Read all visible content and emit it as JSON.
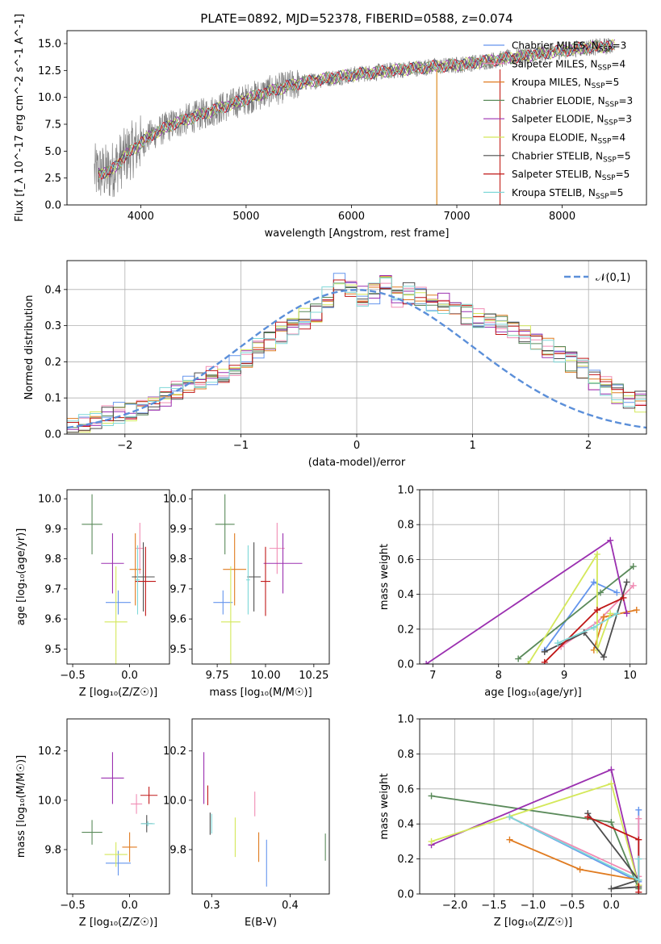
{
  "chart_data": [
    {
      "type": "line",
      "title": "PLATE=0892, MJD=52378, FIBERID=0588, z=0.074",
      "xlabel": "wavelength [Angstrom, rest frame]",
      "ylabel": "Flux [f_λ 10^-17 erg cm^-2 s^-1 A^-1]",
      "xlim": [
        3300,
        8800
      ],
      "ylim": [
        0,
        16.2
      ],
      "xticks": [
        4000,
        5000,
        6000,
        7000,
        8000
      ],
      "yticks": [
        0.0,
        2.5,
        5.0,
        7.5,
        10.0,
        12.5,
        15.0
      ],
      "grid": false,
      "legend": "right",
      "continuum_x": [
        3550,
        3700,
        3900,
        4100,
        4300,
        4600,
        4900,
        5200,
        5500,
        5800,
        6100,
        6400,
        6700,
        7000,
        7300,
        7600,
        7900,
        8200,
        8500
      ],
      "continuum_y": [
        3.0,
        3.0,
        5.0,
        6.5,
        7.5,
        8.5,
        9.5,
        10.5,
        11.3,
        11.8,
        12.2,
        12.5,
        12.8,
        13.0,
        13.4,
        13.8,
        14.2,
        14.6,
        14.8
      ],
      "legend_entries": [
        {
          "label": "Chabrier MILES, N",
          "sub": "SSP",
          "tail": "=3",
          "color": "#6495ED"
        },
        {
          "label": "Salpeter MILES, N",
          "sub": "SSP",
          "tail": "=4",
          "color": "#F08CB4"
        },
        {
          "label": "Kroupa MILES, N",
          "sub": "SSP",
          "tail": "=5",
          "color": "#E07B20"
        },
        {
          "label": "Chabrier ELODIE, N",
          "sub": "SSP",
          "tail": "=3",
          "color": "#5A8A5A"
        },
        {
          "label": "Salpeter ELODIE, N",
          "sub": "SSP",
          "tail": "=3",
          "color": "#9B30B0"
        },
        {
          "label": "Kroupa ELODIE, N",
          "sub": "SSP",
          "tail": "=4",
          "color": "#D4E85A"
        },
        {
          "label": "Chabrier STELIB, N",
          "sub": "SSP",
          "tail": "=5",
          "color": "#4D4D4D"
        },
        {
          "label": "Salpeter STELIB, N",
          "sub": "SSP",
          "tail": "=5",
          "color": "#C01818"
        },
        {
          "label": "Kroupa STELIB, N",
          "sub": "SSP",
          "tail": "=5",
          "color": "#7FD8D8"
        }
      ]
    },
    {
      "type": "histogram",
      "xlabel": "(data-model)/error",
      "ylabel": "Normed distribution",
      "xlim": [
        -2.5,
        2.5
      ],
      "ylim": [
        0,
        0.48
      ],
      "xticks": [
        -2,
        -1,
        0,
        1,
        2
      ],
      "yticks": [
        0.0,
        0.1,
        0.2,
        0.3,
        0.4
      ],
      "grid": true,
      "legend": "top-right",
      "gaussian_label": "𝒩(0,1)",
      "gaussian_color": "#5B8FD9",
      "bin_width": 0.1,
      "bin_start": -2.5,
      "base_values": [
        0.02,
        0.025,
        0.04,
        0.05,
        0.06,
        0.065,
        0.08,
        0.09,
        0.1,
        0.12,
        0.14,
        0.15,
        0.16,
        0.17,
        0.19,
        0.21,
        0.24,
        0.26,
        0.28,
        0.3,
        0.32,
        0.34,
        0.38,
        0.42,
        0.4,
        0.38,
        0.39,
        0.41,
        0.38,
        0.39,
        0.38,
        0.37,
        0.36,
        0.34,
        0.33,
        0.32,
        0.31,
        0.3,
        0.29,
        0.28,
        0.25,
        0.24,
        0.22,
        0.2,
        0.18,
        0.15,
        0.13,
        0.11,
        0.1,
        0.09,
        0.08,
        0.07,
        0.06,
        0.05,
        0.04,
        0.035,
        0.03,
        0.025,
        0.02,
        0.02
      ]
    },
    {
      "type": "scatter",
      "xlabel": "Z [log₁₀(Z/Z☉)]",
      "ylabel": "age [log₁₀(age/yr)]",
      "xlim": [
        -0.55,
        0.35
      ],
      "ylim": [
        9.45,
        10.03
      ],
      "xticks": [
        -0.5,
        0.0
      ],
      "yticks": [
        9.5,
        9.6,
        9.7,
        9.8,
        9.9,
        10.0
      ],
      "points": [
        {
          "x": -0.1,
          "y": 9.655,
          "ex": 0.22,
          "ey": 0.08,
          "color": "#6495ED"
        },
        {
          "x": 0.09,
          "y": 9.835,
          "ex": 0.07,
          "ey": 0.17,
          "color": "#F08CB4"
        },
        {
          "x": 0.05,
          "y": 9.765,
          "ex": 0.1,
          "ey": 0.24,
          "color": "#E07B20"
        },
        {
          "x": -0.33,
          "y": 9.915,
          "ex": 0.18,
          "ey": 0.2,
          "color": "#5A8A5A"
        },
        {
          "x": -0.15,
          "y": 9.785,
          "ex": 0.2,
          "ey": 0.2,
          "color": "#9B30B0"
        },
        {
          "x": -0.12,
          "y": 9.59,
          "ex": 0.2,
          "ey": 0.37,
          "color": "#D4E85A"
        },
        {
          "x": 0.12,
          "y": 9.74,
          "ex": 0.2,
          "ey": 0.23,
          "color": "#4D4D4D"
        },
        {
          "x": 0.14,
          "y": 9.725,
          "ex": 0.18,
          "ey": 0.23,
          "color": "#C01818"
        },
        {
          "x": 0.07,
          "y": 9.73,
          "ex": 0.04,
          "ey": 0.23,
          "color": "#7FD8D8"
        }
      ]
    },
    {
      "type": "scatter",
      "xlabel": "mass [log₁₀(M/M☉)]",
      "ylabel": "",
      "xlim": [
        9.62,
        10.33
      ],
      "ylim": [
        9.45,
        10.03
      ],
      "xticks": [
        9.75,
        10.0,
        10.25
      ],
      "yticks": [
        9.5,
        9.6,
        9.7,
        9.8,
        9.9,
        10.0
      ],
      "points": [
        {
          "x": 9.78,
          "y": 9.655,
          "ex": 0.1,
          "ey": 0.08,
          "color": "#6495ED"
        },
        {
          "x": 10.06,
          "y": 9.835,
          "ex": 0.08,
          "ey": 0.17,
          "color": "#F08CB4"
        },
        {
          "x": 9.84,
          "y": 9.765,
          "ex": 0.12,
          "ey": 0.24,
          "color": "#E07B20"
        },
        {
          "x": 9.79,
          "y": 9.915,
          "ex": 0.1,
          "ey": 0.2,
          "color": "#5A8A5A"
        },
        {
          "x": 10.09,
          "y": 9.785,
          "ex": 0.2,
          "ey": 0.2,
          "color": "#9B30B0"
        },
        {
          "x": 9.82,
          "y": 9.59,
          "ex": 0.1,
          "ey": 0.37,
          "color": "#D4E85A"
        },
        {
          "x": 9.94,
          "y": 9.74,
          "ex": 0.07,
          "ey": 0.23,
          "color": "#4D4D4D"
        },
        {
          "x": 10.0,
          "y": 9.725,
          "ex": 0.05,
          "ey": 0.23,
          "color": "#C01818"
        },
        {
          "x": 9.91,
          "y": 9.73,
          "ex": 0.02,
          "ey": 0.23,
          "color": "#7FD8D8"
        }
      ]
    },
    {
      "type": "line",
      "xlabel": "age [log₁₀(age/yr)]",
      "ylabel": "mass weight",
      "xlim": [
        6.8,
        10.25
      ],
      "ylim": [
        0,
        1.0
      ],
      "xticks": [
        7,
        8,
        9,
        10
      ],
      "yticks": [
        0.0,
        0.2,
        0.4,
        0.6,
        0.8,
        1.0
      ],
      "grid": true,
      "series": [
        {
          "color": "#6495ED",
          "x": [
            8.7,
            9.45,
            9.8
          ],
          "y": [
            0.08,
            0.47,
            0.41
          ]
        },
        {
          "color": "#F08CB4",
          "x": [
            8.95,
            9.5,
            10.05
          ],
          "y": [
            0.1,
            0.24,
            0.45
          ]
        },
        {
          "color": "#E07B20",
          "x": [
            9.45,
            9.6,
            10.1
          ],
          "y": [
            0.08,
            0.27,
            0.31
          ]
        },
        {
          "color": "#5A8A5A",
          "x": [
            8.3,
            9.55,
            10.05
          ],
          "y": [
            0.03,
            0.41,
            0.56
          ]
        },
        {
          "color": "#9B30B0",
          "x": [
            6.9,
            9.7,
            9.95
          ],
          "y": [
            0.0,
            0.71,
            0.29
          ]
        },
        {
          "color": "#D4E85A",
          "x": [
            8.45,
            9.5,
            9.5,
            9.7
          ],
          "y": [
            0.0,
            0.63,
            0.08,
            0.29
          ]
        },
        {
          "color": "#4D4D4D",
          "x": [
            8.7,
            9.3,
            9.6,
            9.95
          ],
          "y": [
            0.07,
            0.18,
            0.04,
            0.47
          ]
        },
        {
          "color": "#C01818",
          "x": [
            8.7,
            9.5,
            9.9
          ],
          "y": [
            0.01,
            0.31,
            0.38
          ]
        },
        {
          "color": "#7FD8D8",
          "x": [
            8.9,
            9.45,
            9.8
          ],
          "y": [
            0.12,
            0.21,
            0.29
          ]
        }
      ]
    },
    {
      "type": "scatter",
      "xlabel": "Z [log₁₀(Z/Z☉)]",
      "ylabel": "mass [log₁₀(M/M☉)]",
      "xlim": [
        -0.55,
        0.35
      ],
      "ylim": [
        9.62,
        10.33
      ],
      "xticks": [
        -0.5,
        0.0
      ],
      "yticks": [
        9.8,
        10.0,
        10.2
      ],
      "points": [
        {
          "x": -0.1,
          "y": 9.745,
          "ex": 0.22,
          "ey": 0.1,
          "color": "#6495ED"
        },
        {
          "x": 0.06,
          "y": 9.985,
          "ex": 0.1,
          "ey": 0.08,
          "color": "#F08CB4"
        },
        {
          "x": 0.0,
          "y": 9.81,
          "ex": 0.13,
          "ey": 0.12,
          "color": "#E07B20"
        },
        {
          "x": -0.33,
          "y": 9.87,
          "ex": 0.18,
          "ey": 0.1,
          "color": "#5A8A5A"
        },
        {
          "x": -0.15,
          "y": 10.09,
          "ex": 0.2,
          "ey": 0.21,
          "color": "#9B30B0"
        },
        {
          "x": -0.12,
          "y": 9.78,
          "ex": 0.2,
          "ey": 0.1,
          "color": "#D4E85A"
        },
        {
          "x": 0.15,
          "y": 9.905,
          "ex": 0.1,
          "ey": 0.07,
          "color": "#4D4D4D"
        },
        {
          "x": 0.17,
          "y": 10.02,
          "ex": 0.15,
          "ey": 0.07,
          "color": "#C01818"
        },
        {
          "x": 0.16,
          "y": 9.905,
          "ex": 0.12,
          "ey": 0.02,
          "color": "#7FD8D8"
        }
      ]
    },
    {
      "type": "scatter",
      "xlabel": "E(B-V)",
      "ylabel": "",
      "xlim": [
        0.275,
        0.45
      ],
      "ylim": [
        9.62,
        10.33
      ],
      "xticks": [
        0.3,
        0.4
      ],
      "yticks": [
        9.8,
        10.0,
        10.2
      ],
      "points": [
        {
          "x": 0.37,
          "y": 9.745,
          "ex": 0,
          "ey": 0.19,
          "color": "#6495ED"
        },
        {
          "x": 0.355,
          "y": 9.985,
          "ex": 0,
          "ey": 0.1,
          "color": "#F08CB4"
        },
        {
          "x": 0.36,
          "y": 9.81,
          "ex": 0,
          "ey": 0.12,
          "color": "#E07B20"
        },
        {
          "x": 0.445,
          "y": 9.81,
          "ex": 0,
          "ey": 0.11,
          "color": "#5A8A5A"
        },
        {
          "x": 0.29,
          "y": 10.09,
          "ex": 0,
          "ey": 0.21,
          "color": "#9B30B0"
        },
        {
          "x": 0.33,
          "y": 9.85,
          "ex": 0,
          "ey": 0.16,
          "color": "#D4E85A"
        },
        {
          "x": 0.298,
          "y": 9.905,
          "ex": 0,
          "ey": 0.09,
          "color": "#4D4D4D"
        },
        {
          "x": 0.295,
          "y": 10.02,
          "ex": 0,
          "ey": 0.08,
          "color": "#C01818"
        },
        {
          "x": 0.3,
          "y": 9.905,
          "ex": 0,
          "ey": 0.08,
          "color": "#7FD8D8"
        }
      ]
    },
    {
      "type": "line",
      "xlabel": "Z [log₁₀(Z/Z☉)]",
      "ylabel": "mass weight",
      "xlim": [
        -2.45,
        0.45
      ],
      "ylim": [
        0,
        1.0
      ],
      "xticks": [
        -2.0,
        -1.5,
        -1.0,
        -0.5,
        0.0
      ],
      "yticks": [
        0.0,
        0.2,
        0.4,
        0.6,
        0.8,
        1.0
      ],
      "grid": true,
      "series": [
        {
          "color": "#6495ED",
          "x": [
            -1.3,
            0.35,
            0.35
          ],
          "y": [
            0.44,
            0.07,
            0.48
          ]
        },
        {
          "color": "#F08CB4",
          "x": [
            -1.3,
            0.35,
            0.35
          ],
          "y": [
            0.44,
            0.1,
            0.43
          ]
        },
        {
          "color": "#E07B20",
          "x": [
            -1.3,
            -0.4,
            0.35
          ],
          "y": [
            0.31,
            0.14,
            0.08
          ]
        },
        {
          "color": "#5A8A5A",
          "x": [
            -2.3,
            0.0,
            0.35
          ],
          "y": [
            0.56,
            0.41,
            0.03
          ]
        },
        {
          "color": "#9B30B0",
          "x": [
            -2.3,
            0.0,
            0.35
          ],
          "y": [
            0.28,
            0.71,
            0.05
          ]
        },
        {
          "color": "#D4E85A",
          "x": [
            -2.3,
            0.0,
            0.35
          ],
          "y": [
            0.3,
            0.63,
            0.05
          ]
        },
        {
          "color": "#4D4D4D",
          "x": [
            -0.3,
            0.35,
            0.0,
            0.35
          ],
          "y": [
            0.46,
            0.08,
            0.03,
            0.04
          ]
        },
        {
          "color": "#C01818",
          "x": [
            -0.3,
            0.35,
            0.35
          ],
          "y": [
            0.44,
            0.31,
            0.01
          ]
        },
        {
          "color": "#7FD8D8",
          "x": [
            -1.3,
            0.35,
            0.35
          ],
          "y": [
            0.44,
            0.08,
            0.2
          ]
        }
      ]
    }
  ]
}
